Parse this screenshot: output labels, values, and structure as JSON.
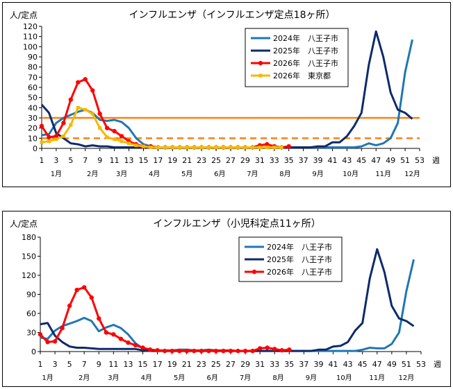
{
  "chart_data": [
    {
      "type": "line",
      "title": "インフルエンザ（インフルエンザ定点18ヶ所）",
      "ylabel": "人/定点",
      "xlabel": "週",
      "ylim": [
        0,
        120
      ],
      "yticks": [
        0,
        10,
        20,
        30,
        40,
        50,
        60,
        70,
        80,
        90,
        100,
        110,
        120
      ],
      "xlim": [
        1,
        53
      ],
      "xticks": [
        1,
        3,
        5,
        7,
        9,
        11,
        13,
        15,
        17,
        19,
        21,
        23,
        25,
        27,
        29,
        31,
        33,
        35,
        37,
        39,
        41,
        43,
        45,
        47,
        49,
        51,
        53
      ],
      "months": [
        {
          "label": "1月",
          "week": 3
        },
        {
          "label": "2月",
          "week": 8
        },
        {
          "label": "3月",
          "week": 12
        },
        {
          "label": "4月",
          "week": 16.5
        },
        {
          "label": "5月",
          "week": 21
        },
        {
          "label": "6月",
          "week": 25.5
        },
        {
          "label": "7月",
          "week": 30
        },
        {
          "label": "8月",
          "week": 34.5
        },
        {
          "label": "9月",
          "week": 39
        },
        {
          "label": "10月",
          "week": 43.5
        },
        {
          "label": "11月",
          "week": 48
        },
        {
          "label": "12月",
          "week": 52
        }
      ],
      "reference_lines": [
        {
          "value": 30,
          "style": "solid",
          "color": "#ff7f0e"
        },
        {
          "value": 10,
          "style": "dashed",
          "color": "#ff7f0e"
        }
      ],
      "series": [
        {
          "name": "2024年　八王子市",
          "color": "#1f77b4",
          "marker": "none",
          "x": [
            1,
            2,
            3,
            4,
            5,
            6,
            7,
            8,
            9,
            10,
            11,
            12,
            13,
            14,
            15,
            16,
            17,
            18,
            19,
            20,
            21,
            22,
            23,
            24,
            25,
            26,
            27,
            28,
            29,
            30,
            31,
            32,
            33,
            34,
            35,
            36,
            37,
            38,
            39,
            40,
            41,
            42,
            43,
            44,
            45,
            46,
            47,
            48,
            49,
            50,
            51,
            52
          ],
          "values": [
            13,
            14,
            25,
            30,
            33,
            36,
            38,
            35,
            28,
            27,
            28,
            26,
            20,
            10,
            4,
            2,
            1,
            1,
            1,
            1,
            1,
            1,
            1,
            1,
            1,
            1,
            1,
            1,
            1,
            1,
            1,
            1,
            1,
            1,
            1,
            1,
            1,
            1,
            1,
            1,
            1,
            1,
            1,
            1,
            2,
            5,
            3,
            5,
            10,
            25,
            75,
            107
          ]
        },
        {
          "name": "2025年　八王子市",
          "color": "#0d2a6b",
          "marker": "none",
          "x": [
            1,
            2,
            3,
            4,
            5,
            6,
            7,
            8,
            9,
            10,
            11,
            12,
            13,
            14,
            15,
            16,
            17,
            18,
            19,
            20,
            21,
            22,
            23,
            24,
            25,
            26,
            27,
            28,
            29,
            30,
            31,
            32,
            33,
            34,
            35,
            36,
            37,
            38,
            39,
            40,
            41,
            42,
            43,
            44,
            45,
            46,
            47,
            48,
            49,
            50,
            51,
            52
          ],
          "values": [
            43,
            35,
            15,
            10,
            5,
            4,
            2,
            3,
            2,
            2,
            1,
            1,
            1,
            1,
            1,
            1,
            1,
            1,
            1,
            1,
            1,
            1,
            1,
            1,
            1,
            1,
            1,
            1,
            1,
            1,
            1,
            1,
            1,
            1,
            1,
            1,
            1,
            1,
            2,
            2,
            6,
            6,
            12,
            22,
            35,
            82,
            115,
            90,
            55,
            38,
            35,
            29
          ]
        },
        {
          "name": "2026年　八王子市",
          "color": "#ff0000",
          "marker": "circle",
          "x": [
            1,
            2,
            3,
            4,
            5,
            6,
            7,
            8,
            9,
            10,
            11,
            12,
            13,
            14,
            15,
            16,
            17,
            18,
            19,
            20,
            21,
            22,
            23,
            24,
            25,
            26,
            27,
            28,
            29,
            30,
            31,
            32,
            33,
            34,
            35
          ],
          "values": [
            22,
            11,
            12,
            25,
            48,
            65,
            68,
            57,
            34,
            20,
            17,
            12,
            7,
            4,
            2,
            2,
            1,
            1,
            1,
            1,
            1,
            1,
            1,
            1,
            1,
            1,
            1,
            1,
            1,
            1,
            3,
            4,
            2,
            1,
            2
          ]
        },
        {
          "name": "2026年　東京都",
          "color": "#f5b800",
          "marker": "square",
          "x": [
            1,
            2,
            3,
            4,
            5,
            6,
            7,
            8,
            9,
            10,
            11,
            12,
            13,
            14,
            15,
            16,
            17,
            18,
            19,
            20,
            21,
            22,
            23,
            24,
            25,
            26,
            27,
            28,
            29,
            30,
            31,
            32,
            33,
            34
          ],
          "values": [
            6,
            7,
            9,
            12,
            23,
            40,
            38,
            34,
            20,
            11,
            9,
            7,
            5,
            3,
            2,
            1,
            1,
            1,
            1,
            1,
            1,
            1,
            1,
            1,
            1,
            1,
            1,
            1,
            1,
            1,
            1,
            1,
            1,
            1
          ]
        }
      ]
    },
    {
      "type": "line",
      "title": "インフルエンザ（小児科定点11ヶ所）",
      "ylabel": "人/定点",
      "xlabel": "週",
      "ylim": [
        0,
        180
      ],
      "yticks": [
        0,
        30,
        60,
        90,
        120,
        150,
        180
      ],
      "xlim": [
        1,
        53
      ],
      "xticks": [
        1,
        3,
        5,
        7,
        9,
        11,
        13,
        15,
        17,
        19,
        21,
        23,
        25,
        27,
        29,
        31,
        33,
        35,
        37,
        39,
        41,
        43,
        45,
        47,
        49,
        51,
        53
      ],
      "months": [
        {
          "label": "1月",
          "week": 2
        },
        {
          "label": "2月",
          "week": 7
        },
        {
          "label": "3月",
          "week": 11
        },
        {
          "label": "4月",
          "week": 15.5
        },
        {
          "label": "5月",
          "week": 20
        },
        {
          "label": "6月",
          "week": 24.5
        },
        {
          "label": "7月",
          "week": 29
        },
        {
          "label": "8月",
          "week": 33.5
        },
        {
          "label": "9月",
          "week": 38
        },
        {
          "label": "10月",
          "week": 42.5
        },
        {
          "label": "11月",
          "week": 47
        },
        {
          "label": "12月",
          "week": 51
        }
      ],
      "reference_lines": [],
      "series": [
        {
          "name": "2024年　八王子市",
          "color": "#1f77b4",
          "marker": "none",
          "x": [
            1,
            2,
            3,
            4,
            5,
            6,
            7,
            8,
            9,
            10,
            11,
            12,
            13,
            14,
            15,
            16,
            17,
            18,
            19,
            20,
            21,
            22,
            23,
            24,
            25,
            26,
            27,
            28,
            29,
            30,
            31,
            32,
            33,
            34,
            35,
            36,
            37,
            38,
            39,
            40,
            41,
            42,
            43,
            44,
            45,
            46,
            47,
            48,
            49,
            50,
            51,
            52
          ],
          "values": [
            22,
            20,
            33,
            40,
            44,
            48,
            53,
            48,
            32,
            38,
            42,
            37,
            27,
            13,
            5,
            3,
            2,
            2,
            2,
            3,
            3,
            2,
            2,
            3,
            2,
            2,
            2,
            1,
            1,
            1,
            1,
            1,
            1,
            1,
            1,
            1,
            1,
            1,
            1,
            1,
            1,
            1,
            1,
            1,
            3,
            6,
            5,
            5,
            12,
            30,
            95,
            145
          ]
        },
        {
          "name": "2025年　八王子市",
          "color": "#0d2a6b",
          "marker": "none",
          "x": [
            1,
            2,
            3,
            4,
            5,
            6,
            7,
            8,
            9,
            10,
            11,
            12,
            13,
            14,
            15,
            16,
            17,
            18,
            19,
            20,
            21,
            22,
            23,
            24,
            25,
            26,
            27,
            28,
            29,
            30,
            31,
            32,
            33,
            34,
            35,
            36,
            37,
            38,
            39,
            40,
            41,
            42,
            43,
            44,
            45,
            46,
            47,
            48,
            49,
            50,
            51,
            52
          ],
          "values": [
            43,
            45,
            25,
            15,
            8,
            6,
            6,
            5,
            4,
            4,
            4,
            4,
            4,
            4,
            2,
            1,
            1,
            1,
            1,
            1,
            1,
            1,
            1,
            1,
            1,
            1,
            1,
            1,
            1,
            1,
            1,
            1,
            1,
            1,
            1,
            1,
            1,
            1,
            3,
            3,
            8,
            9,
            15,
            33,
            45,
            115,
            161,
            125,
            72,
            52,
            48,
            40
          ]
        },
        {
          "name": "2026年　八王子市",
          "color": "#ff0000",
          "marker": "circle",
          "x": [
            1,
            2,
            3,
            4,
            5,
            6,
            7,
            8,
            9,
            10,
            11,
            12,
            13,
            14,
            15,
            16,
            17,
            18,
            19,
            20,
            21,
            22,
            23,
            24,
            25,
            26,
            27,
            28,
            29,
            30,
            31,
            32,
            33,
            34,
            35
          ],
          "values": [
            27,
            15,
            16,
            37,
            72,
            97,
            101,
            85,
            52,
            30,
            27,
            20,
            14,
            10,
            6,
            3,
            2,
            1,
            1,
            1,
            1,
            1,
            1,
            1,
            1,
            1,
            1,
            1,
            1,
            1,
            5,
            6,
            4,
            2,
            3
          ]
        }
      ]
    }
  ]
}
